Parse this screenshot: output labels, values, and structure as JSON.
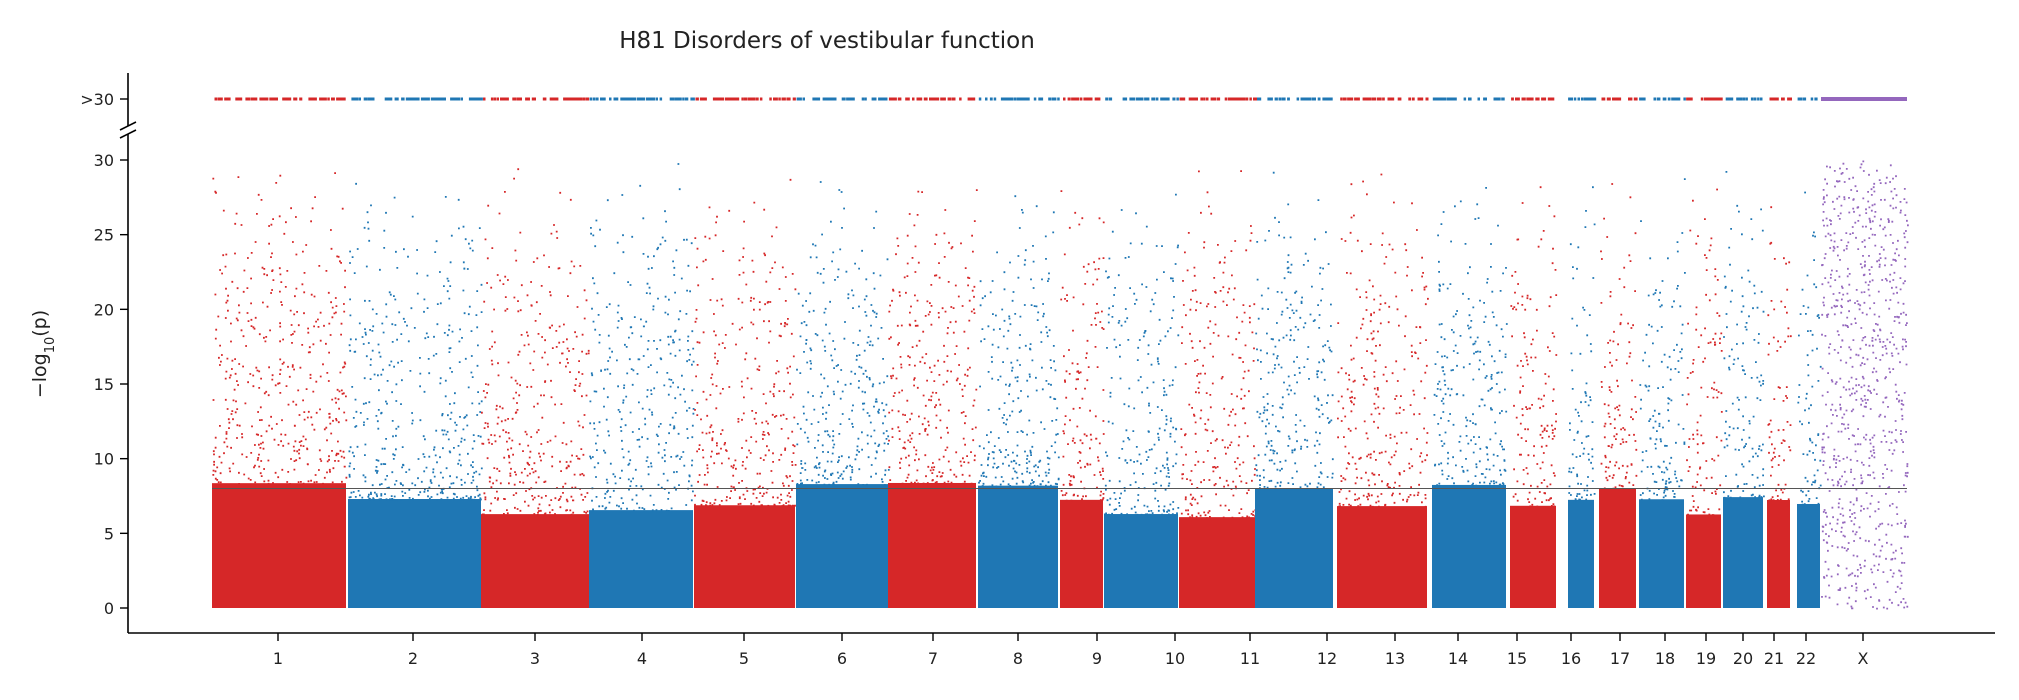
{
  "chart_data": {
    "type": "scatter",
    "title": "H81 Disorders of vestibular function",
    "ylabel": "−log10(p)",
    "ylabel_main": "−log",
    "ylabel_sub": "10",
    "ylabel_rest": "(p)",
    "xlabel": "",
    "ylim": [
      0,
      30
    ],
    "yticks": [
      0,
      5,
      10,
      15,
      20,
      25,
      30
    ],
    "capped_label": ">30",
    "significance_threshold": 8,
    "colors": {
      "odd": "#d62728",
      "even": "#1f77b4",
      "x": "#9467bd"
    },
    "chromosomes": [
      {
        "label": "1",
        "position": 1,
        "color": "#d62728"
      },
      {
        "label": "2",
        "position": 2,
        "color": "#1f77b4"
      },
      {
        "label": "3",
        "position": 3,
        "color": "#d62728"
      },
      {
        "label": "4",
        "position": 4,
        "color": "#1f77b4"
      },
      {
        "label": "5",
        "position": 5,
        "color": "#d62728"
      },
      {
        "label": "6",
        "position": 6,
        "color": "#1f77b4"
      },
      {
        "label": "7",
        "position": 7,
        "color": "#d62728"
      },
      {
        "label": "8",
        "position": 8,
        "color": "#1f77b4"
      },
      {
        "label": "9",
        "position": 9,
        "color": "#d62728"
      },
      {
        "label": "10",
        "position": 10,
        "color": "#1f77b4"
      },
      {
        "label": "11",
        "position": 11,
        "color": "#d62728"
      },
      {
        "label": "12",
        "position": 12,
        "color": "#1f77b4"
      },
      {
        "label": "13",
        "position": 13,
        "color": "#d62728"
      },
      {
        "label": "14",
        "position": 14,
        "color": "#1f77b4"
      },
      {
        "label": "15",
        "position": 15,
        "color": "#d62728"
      },
      {
        "label": "16",
        "position": 16,
        "color": "#1f77b4"
      },
      {
        "label": "17",
        "position": 17,
        "color": "#d62728"
      },
      {
        "label": "18",
        "position": 18,
        "color": "#1f77b4"
      },
      {
        "label": "19",
        "position": 19,
        "color": "#d62728"
      },
      {
        "label": "20",
        "position": 20,
        "color": "#1f77b4"
      },
      {
        "label": "21",
        "position": 21,
        "color": "#d62728"
      },
      {
        "label": "22",
        "position": 22,
        "color": "#1f77b4"
      },
      {
        "label": "X",
        "position": 23,
        "color": "#9467bd"
      }
    ]
  }
}
